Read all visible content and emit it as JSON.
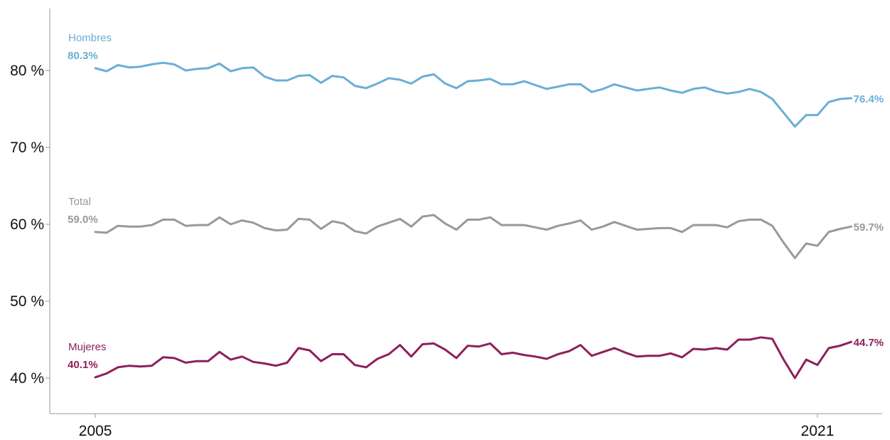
{
  "chart_data": {
    "type": "line",
    "title": "",
    "xlabel": "",
    "ylabel": "",
    "ylim": [
      35,
      85
    ],
    "xlim": [
      2004,
      2022.3
    ],
    "y_ticks": [
      {
        "value": 40,
        "label": "40 %"
      },
      {
        "value": 50,
        "label": "50 %"
      },
      {
        "value": 60,
        "label": "60 %"
      },
      {
        "value": 70,
        "label": "70 %"
      },
      {
        "value": 80,
        "label": "80 %"
      }
    ],
    "x_ticks": [
      {
        "value": 2005,
        "label": "2005"
      },
      {
        "value": 2021,
        "label": "2021"
      }
    ],
    "grid": false,
    "series": [
      {
        "name": "Hombres",
        "color": "#6aaed6",
        "start_label": "80.3%",
        "end_label": "76.4%",
        "x_start": 2005,
        "x_step": 0.25,
        "values": [
          80.3,
          79.9,
          80.7,
          80.4,
          80.5,
          80.8,
          81.0,
          80.8,
          80.0,
          80.2,
          80.3,
          80.9,
          79.9,
          80.3,
          80.4,
          79.2,
          78.7,
          78.7,
          79.3,
          79.4,
          78.4,
          79.3,
          79.1,
          78.0,
          77.7,
          78.3,
          79.0,
          78.8,
          78.3,
          79.2,
          79.5,
          78.3,
          77.7,
          78.6,
          78.7,
          78.9,
          78.2,
          78.2,
          78.6,
          78.1,
          77.6,
          77.9,
          78.2,
          78.2,
          77.2,
          77.6,
          78.2,
          77.8,
          77.4,
          77.6,
          77.8,
          77.4,
          77.1,
          77.6,
          77.8,
          77.3,
          77.0,
          77.2,
          77.6,
          77.2,
          76.3,
          74.5,
          72.7,
          74.2,
          74.2,
          75.9,
          76.3,
          76.4
        ]
      },
      {
        "name": "Total",
        "color": "#999999",
        "start_label": "59.0%",
        "end_label": "59.7%",
        "x_start": 2005,
        "x_step": 0.25,
        "values": [
          59.0,
          58.9,
          59.8,
          59.7,
          59.7,
          59.9,
          60.6,
          60.6,
          59.8,
          59.9,
          59.9,
          60.9,
          60.0,
          60.5,
          60.2,
          59.5,
          59.2,
          59.3,
          60.7,
          60.6,
          59.4,
          60.4,
          60.1,
          59.1,
          58.8,
          59.7,
          60.2,
          60.7,
          59.7,
          61.0,
          61.2,
          60.1,
          59.3,
          60.6,
          60.6,
          60.9,
          59.9,
          59.9,
          59.9,
          59.6,
          59.3,
          59.8,
          60.1,
          60.5,
          59.3,
          59.7,
          60.3,
          59.8,
          59.3,
          59.4,
          59.5,
          59.5,
          59.0,
          59.9,
          59.9,
          59.9,
          59.6,
          60.4,
          60.6,
          60.6,
          59.8,
          57.6,
          55.6,
          57.5,
          57.2,
          59.0,
          59.4,
          59.7
        ]
      },
      {
        "name": "Mujeres",
        "color": "#8e1f5c",
        "start_label": "40.1%",
        "end_label": "44.7%",
        "x_start": 2005,
        "x_step": 0.25,
        "values": [
          40.1,
          40.6,
          41.4,
          41.6,
          41.5,
          41.6,
          42.7,
          42.6,
          42.0,
          42.2,
          42.2,
          43.4,
          42.4,
          42.8,
          42.1,
          41.9,
          41.6,
          42.0,
          43.9,
          43.6,
          42.2,
          43.1,
          43.1,
          41.7,
          41.4,
          42.5,
          43.1,
          44.3,
          42.8,
          44.4,
          44.5,
          43.7,
          42.6,
          44.2,
          44.1,
          44.5,
          43.1,
          43.3,
          43.0,
          42.8,
          42.5,
          43.1,
          43.5,
          44.3,
          42.9,
          43.4,
          43.9,
          43.3,
          42.8,
          42.9,
          42.9,
          43.2,
          42.7,
          43.8,
          43.7,
          43.9,
          43.7,
          45.0,
          45.0,
          45.3,
          45.1,
          42.4,
          40.0,
          42.4,
          41.7,
          43.9,
          44.2,
          44.7
        ]
      }
    ]
  }
}
